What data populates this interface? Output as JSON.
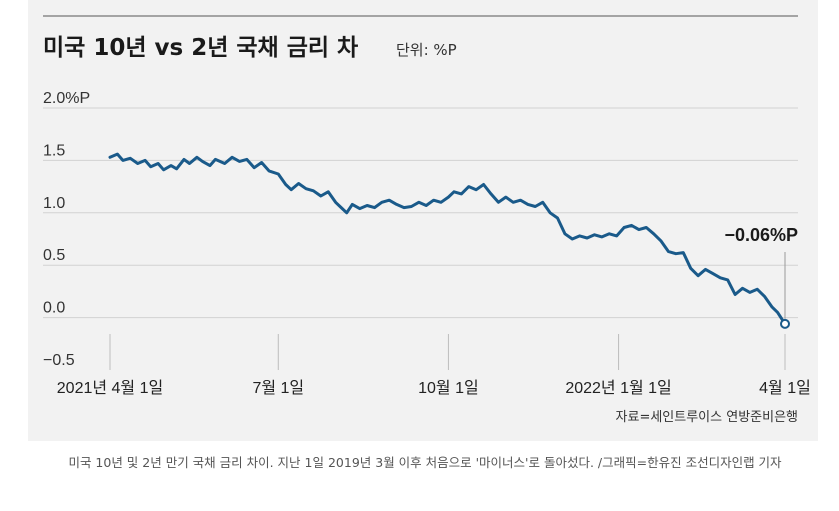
{
  "chart_data": {
    "type": "line",
    "title": "미국 10년 vs 2년 국채 금리 차",
    "unit_label": "단위: %P",
    "y_ticks": [
      "2.0%P",
      "1.5",
      "1.0",
      "0.5",
      "0.0",
      "−0.5"
    ],
    "y_tick_values": [
      2.0,
      1.5,
      1.0,
      0.5,
      0.0,
      -0.5
    ],
    "ylim": [
      -0.5,
      2.0
    ],
    "x_ticks": [
      "2021년 4월 1일",
      "7월 1일",
      "10월 1일",
      "2022년 1월 1일",
      "4월 1일"
    ],
    "x_tick_dates": [
      "2021-04-01",
      "2021-07-01",
      "2021-10-01",
      "2022-01-01",
      "2022-04-01"
    ],
    "xlim": [
      "2021-04-01",
      "2022-04-01"
    ],
    "grid": true,
    "annotation": "−0.06%P",
    "source": "자료=세인트루이스 연방준비은행",
    "series": [
      {
        "color": "#1a5a8a",
        "points": [
          [
            "2021-04-01",
            1.53
          ],
          [
            "2021-04-05",
            1.56
          ],
          [
            "2021-04-08",
            1.5
          ],
          [
            "2021-04-12",
            1.52
          ],
          [
            "2021-04-16",
            1.47
          ],
          [
            "2021-04-20",
            1.5
          ],
          [
            "2021-04-23",
            1.44
          ],
          [
            "2021-04-27",
            1.47
          ],
          [
            "2021-04-30",
            1.41
          ],
          [
            "2021-05-04",
            1.45
          ],
          [
            "2021-05-07",
            1.42
          ],
          [
            "2021-05-11",
            1.51
          ],
          [
            "2021-05-14",
            1.47
          ],
          [
            "2021-05-18",
            1.53
          ],
          [
            "2021-05-21",
            1.49
          ],
          [
            "2021-05-25",
            1.45
          ],
          [
            "2021-05-28",
            1.51
          ],
          [
            "2021-06-02",
            1.47
          ],
          [
            "2021-06-06",
            1.53
          ],
          [
            "2021-06-10",
            1.49
          ],
          [
            "2021-06-14",
            1.51
          ],
          [
            "2021-06-18",
            1.43
          ],
          [
            "2021-06-22",
            1.48
          ],
          [
            "2021-06-26",
            1.4
          ],
          [
            "2021-07-01",
            1.37
          ],
          [
            "2021-07-05",
            1.27
          ],
          [
            "2021-07-08",
            1.22
          ],
          [
            "2021-07-12",
            1.28
          ],
          [
            "2021-07-16",
            1.23
          ],
          [
            "2021-07-20",
            1.21
          ],
          [
            "2021-07-24",
            1.16
          ],
          [
            "2021-07-28",
            1.2
          ],
          [
            "2021-08-01",
            1.1
          ],
          [
            "2021-08-04",
            1.05
          ],
          [
            "2021-08-07",
            1.0
          ],
          [
            "2021-08-10",
            1.08
          ],
          [
            "2021-08-14",
            1.04
          ],
          [
            "2021-08-18",
            1.07
          ],
          [
            "2021-08-22",
            1.05
          ],
          [
            "2021-08-26",
            1.1
          ],
          [
            "2021-08-30",
            1.12
          ],
          [
            "2021-09-03",
            1.08
          ],
          [
            "2021-09-07",
            1.05
          ],
          [
            "2021-09-11",
            1.06
          ],
          [
            "2021-09-15",
            1.1
          ],
          [
            "2021-09-19",
            1.07
          ],
          [
            "2021-09-23",
            1.12
          ],
          [
            "2021-09-27",
            1.1
          ],
          [
            "2021-10-01",
            1.15
          ],
          [
            "2021-10-04",
            1.2
          ],
          [
            "2021-10-08",
            1.18
          ],
          [
            "2021-10-12",
            1.25
          ],
          [
            "2021-10-16",
            1.22
          ],
          [
            "2021-10-20",
            1.27
          ],
          [
            "2021-10-24",
            1.18
          ],
          [
            "2021-10-28",
            1.1
          ],
          [
            "2021-11-01",
            1.15
          ],
          [
            "2021-11-05",
            1.1
          ],
          [
            "2021-11-09",
            1.12
          ],
          [
            "2021-11-13",
            1.08
          ],
          [
            "2021-11-17",
            1.06
          ],
          [
            "2021-11-21",
            1.1
          ],
          [
            "2021-11-25",
            1.0
          ],
          [
            "2021-11-29",
            0.95
          ],
          [
            "2021-12-03",
            0.8
          ],
          [
            "2021-12-07",
            0.75
          ],
          [
            "2021-12-11",
            0.78
          ],
          [
            "2021-12-15",
            0.76
          ],
          [
            "2021-12-19",
            0.79
          ],
          [
            "2021-12-23",
            0.77
          ],
          [
            "2021-12-27",
            0.8
          ],
          [
            "2021-12-31",
            0.78
          ],
          [
            "2022-01-04",
            0.86
          ],
          [
            "2022-01-08",
            0.88
          ],
          [
            "2022-01-12",
            0.84
          ],
          [
            "2022-01-16",
            0.86
          ],
          [
            "2022-01-20",
            0.8
          ],
          [
            "2022-01-24",
            0.73
          ],
          [
            "2022-01-28",
            0.63
          ],
          [
            "2022-02-01",
            0.61
          ],
          [
            "2022-02-05",
            0.62
          ],
          [
            "2022-02-09",
            0.47
          ],
          [
            "2022-02-13",
            0.4
          ],
          [
            "2022-02-17",
            0.46
          ],
          [
            "2022-02-21",
            0.42
          ],
          [
            "2022-02-25",
            0.38
          ],
          [
            "2022-03-01",
            0.36
          ],
          [
            "2022-03-05",
            0.22
          ],
          [
            "2022-03-09",
            0.28
          ],
          [
            "2022-03-13",
            0.24
          ],
          [
            "2022-03-17",
            0.27
          ],
          [
            "2022-03-21",
            0.2
          ],
          [
            "2022-03-25",
            0.1
          ],
          [
            "2022-03-28",
            0.05
          ],
          [
            "2022-04-01",
            -0.06
          ]
        ]
      }
    ]
  },
  "caption": "미국 10년 및 2년 만기 국채 금리 차이. 지난 1일 2019년 3월 이후 처음으로 '마이너스'로 돌아섰다. /그래픽=한유진 조선디자인랩 기자"
}
